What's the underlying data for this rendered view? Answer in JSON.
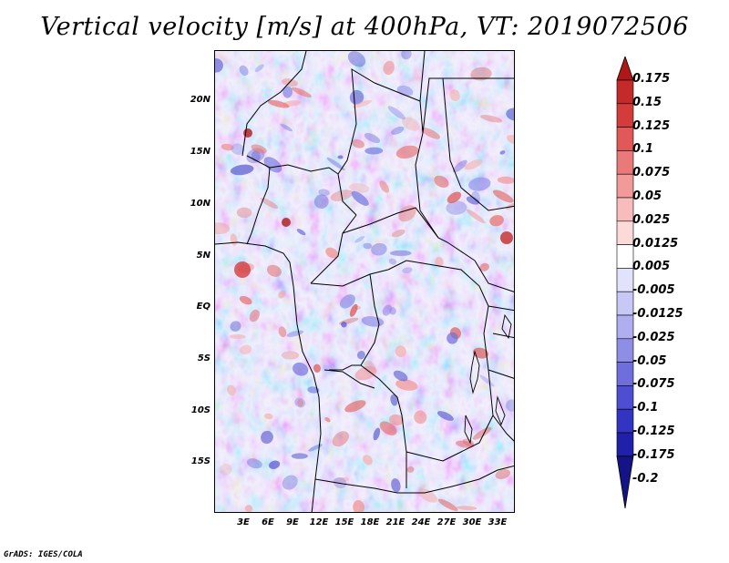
{
  "title": "Vertical velocity [m/s] at 400hPa, VT: 2019072506",
  "lat_labels": [
    "20N",
    "15N",
    "10N",
    "5N",
    "EQ",
    "5S",
    "10S",
    "15S"
  ],
  "lon_labels": [
    "3E",
    "6E",
    "9E",
    "12E",
    "15E",
    "18E",
    "21E",
    "24E",
    "27E",
    "30E",
    "33E"
  ],
  "colorbar": {
    "levels": [
      "0.175",
      "0.15",
      "0.125",
      "0.1",
      "0.075",
      "0.05",
      "0.025",
      "0.0125",
      "0.005",
      "-0.005",
      "-0.0125",
      "-0.025",
      "-0.05",
      "-0.075",
      "-0.1",
      "-0.125",
      "-0.175",
      "-0.2"
    ],
    "colors": [
      "#b01818",
      "#c42a2a",
      "#d43c3c",
      "#e05858",
      "#ea7a7a",
      "#f29a9a",
      "#f8bcbc",
      "#fcdada",
      "#ffffff",
      "#e2e2fc",
      "#c8c8f6",
      "#aeaef0",
      "#8e8ee6",
      "#6e6edc",
      "#4e4ed2",
      "#3434c2",
      "#2020aa",
      "#141486"
    ]
  },
  "credit": "GrADS: IGES/COLA"
}
